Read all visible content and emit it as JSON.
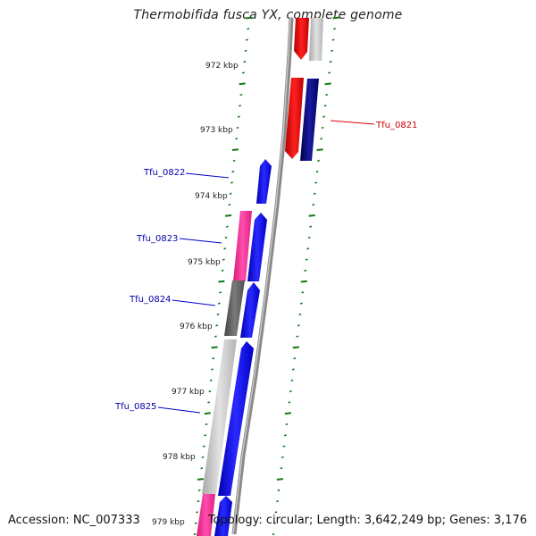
{
  "title": "Thermobifida fusca YX, complete genome",
  "footer": {
    "accession": "Accession: NC_007333",
    "stats": "Topology: circular; Length: 3,642,249 bp; Genes: 3,176"
  },
  "colors": {
    "reverse_gene": "#ff0000",
    "reverse_gene_dark": "#000080",
    "forward_gene": "#0000ff",
    "pink": "#ff2a95",
    "gray_gene": "#c8c8c8",
    "dark_gray_gene": "#606060",
    "tick": "#127a12",
    "backbone": "#8a8a8a",
    "label_reverse": "#cc0000",
    "label_forward": "#0000aa"
  },
  "kbp_ticks": [
    "972 kbp",
    "973 kbp",
    "974 kbp",
    "975 kbp",
    "976 kbp",
    "977 kbp",
    "978 kbp",
    "979 kbp"
  ],
  "gene_labels": [
    {
      "text": "Tfu_0821",
      "strand": "reverse"
    },
    {
      "text": "Tfu_0822",
      "strand": "forward"
    },
    {
      "text": "Tfu_0823",
      "strand": "forward"
    },
    {
      "text": "Tfu_0824",
      "strand": "forward"
    },
    {
      "text": "Tfu_0825",
      "strand": "forward"
    }
  ]
}
